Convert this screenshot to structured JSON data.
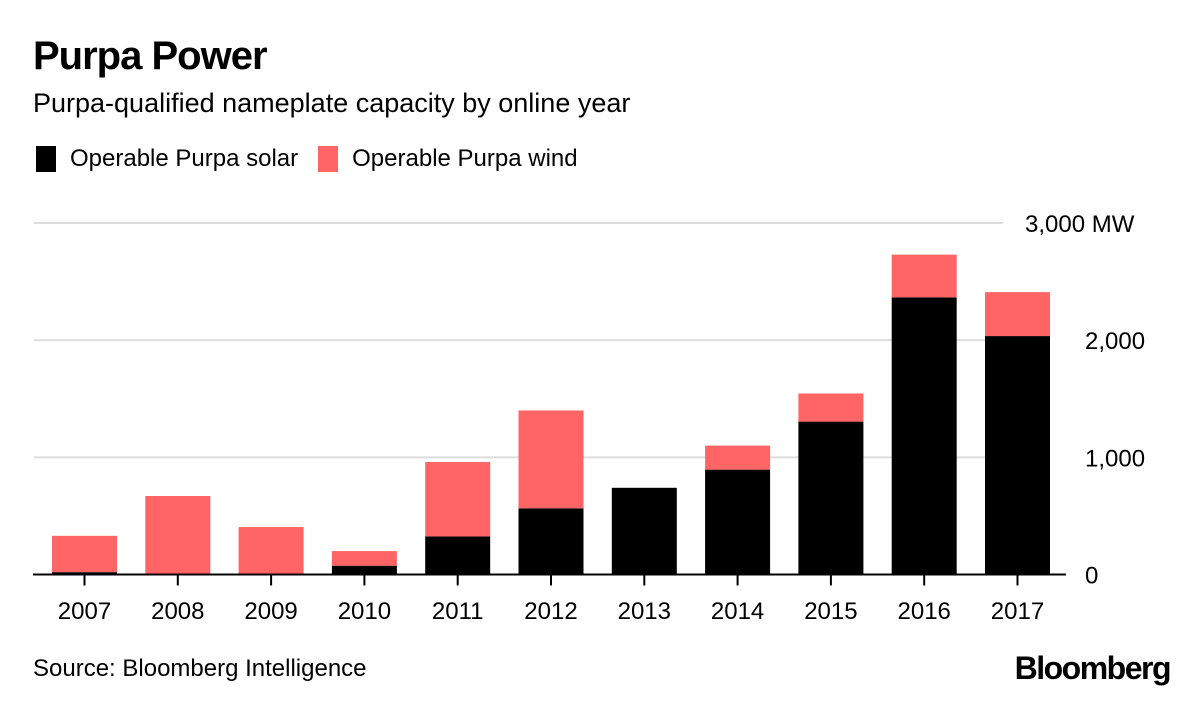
{
  "header": {
    "title": "Purpa Power",
    "subtitle": "Purpa-qualified nameplate capacity by online year"
  },
  "legend": [
    {
      "label": "Operable Purpa solar",
      "color": "#000000"
    },
    {
      "label": "Operable Purpa wind",
      "color": "#ff6565"
    }
  ],
  "footer": {
    "source": "Source: Bloomberg Intelligence",
    "brand": "Bloomberg"
  },
  "chart_data": {
    "type": "bar",
    "stacked": true,
    "title": "Purpa Power",
    "subtitle": "Purpa-qualified nameplate capacity by online year",
    "xlabel": "",
    "ylabel": "MW",
    "categories": [
      "2007",
      "2008",
      "2009",
      "2010",
      "2011",
      "2012",
      "2013",
      "2014",
      "2015",
      "2016",
      "2017"
    ],
    "series": [
      {
        "name": "Operable Purpa solar",
        "color": "#000000",
        "values": [
          20,
          0,
          0,
          75,
          325,
          565,
          740,
          895,
          1305,
          2365,
          2035
        ]
      },
      {
        "name": "Operable Purpa wind",
        "color": "#ff6565",
        "values": [
          310,
          670,
          405,
          125,
          635,
          835,
          0,
          205,
          240,
          365,
          375
        ]
      }
    ],
    "ylim": [
      0,
      3000
    ],
    "yticks": [
      0,
      1000,
      2000,
      3000
    ],
    "ytick_labels": [
      "0",
      "1,000",
      "2,000",
      "3,000 MW"
    ],
    "y_axis_side": "right",
    "grid": true,
    "legend_position": "top-left"
  }
}
